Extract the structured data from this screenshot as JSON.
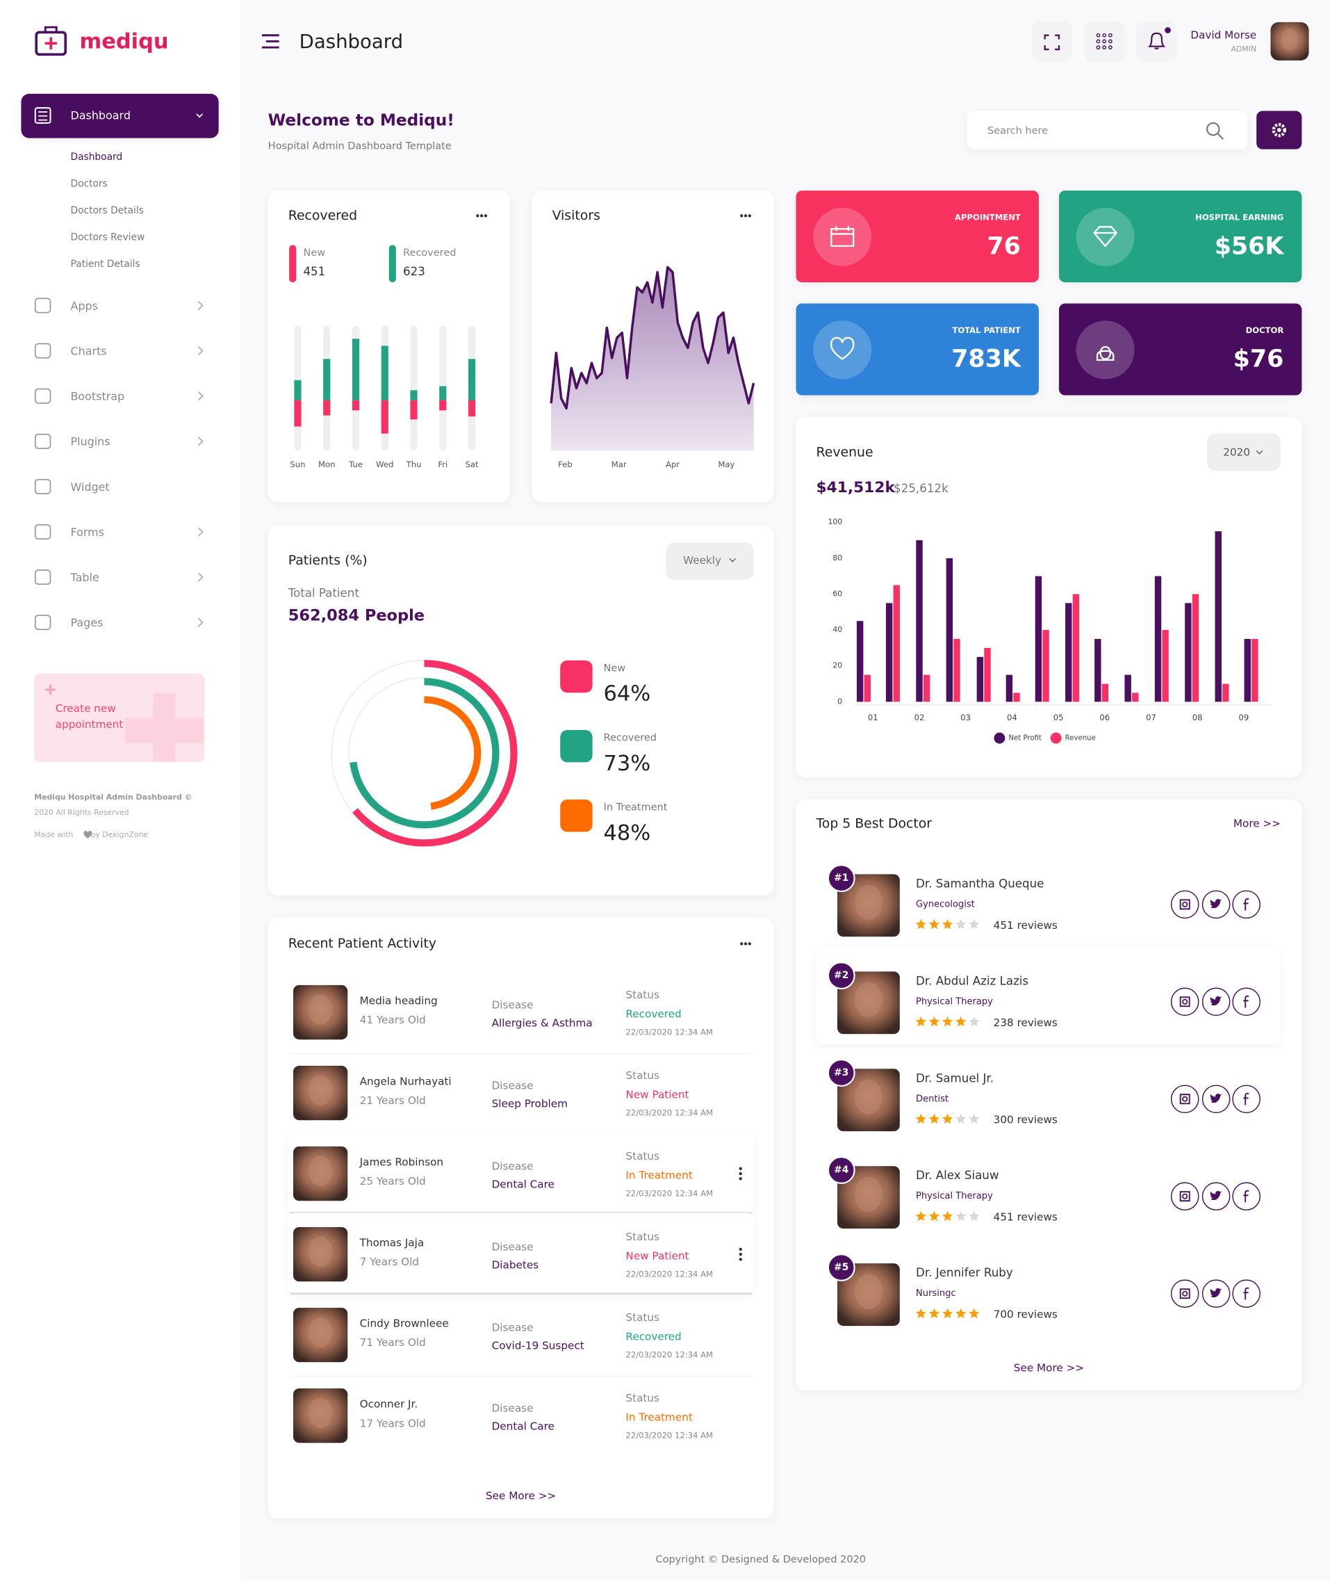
{
  "sidebar": {
    "brand": "mediqu",
    "menu": [
      {
        "label": "Dashboard",
        "expandable": true,
        "submenu": [
          "Dashboard",
          "Doctors",
          "Doctors Details",
          "Doctors Review",
          "Patient Details"
        ]
      },
      {
        "label": "Apps",
        "expandable": true
      },
      {
        "label": "Charts",
        "expandable": true
      },
      {
        "label": "Bootstrap",
        "expandable": true
      },
      {
        "label": "Plugins",
        "expandable": true
      },
      {
        "label": "Widget",
        "expandable": false
      },
      {
        "label": "Forms",
        "expandable": true
      },
      {
        "label": "Table",
        "expandable": true
      },
      {
        "label": "Pages",
        "expandable": true
      }
    ],
    "promo": "Create new appointment",
    "footer": {
      "line1": "Mediqu Hospital Admin Dashboard ©",
      "line2": "2020 All Rights Reserved",
      "made": "Made with",
      "by": "by DexignZone"
    }
  },
  "header": {
    "title": "Dashboard",
    "user": {
      "name": "David Morse",
      "role": "ADMIN"
    }
  },
  "welcome": {
    "title": "Welcome to Mediqu!",
    "subtitle": "Hospital Admin Dashboard Template",
    "search_placeholder": "Search here"
  },
  "stats": [
    {
      "label": "APPOINTMENT",
      "value": "76",
      "color": "#f7325e"
    },
    {
      "label": "HOSPITAL EARNING",
      "value": "$56K",
      "color": "#22a484"
    },
    {
      "label": "TOTAL PATIENT",
      "value": "783K",
      "color": "#2e82d8"
    },
    {
      "label": "DOCTOR",
      "value": "$76",
      "color": "#4a0f5e"
    }
  ],
  "chart_data": [
    {
      "type": "diverging_bar",
      "title": "Recovered",
      "categories": [
        "Sun",
        "Mon",
        "Tue",
        "Wed",
        "Thu",
        "Fri",
        "Sat"
      ],
      "series": [
        {
          "name": "New",
          "total": 451,
          "color": "#f73164",
          "values": [
            26,
            15,
            10,
            33,
            19,
            10,
            16
          ]
        },
        {
          "name": "Recovered",
          "total": 623,
          "color": "#22a484",
          "values": [
            20,
            41,
            61,
            54,
            10,
            14,
            41
          ]
        }
      ]
    },
    {
      "type": "area",
      "title": "Visitors",
      "color": "#4a0f5e",
      "x_labels": [
        "Feb",
        "Mar",
        "Apr",
        "May"
      ],
      "values": [
        47,
        97,
        52,
        42,
        82,
        62,
        77,
        67,
        87,
        72,
        77,
        122,
        92,
        112,
        117,
        72,
        122,
        162,
        157,
        167,
        147,
        177,
        142,
        182,
        177,
        127,
        112,
        102,
        127,
        137,
        102,
        87,
        107,
        132,
        137,
        97,
        112,
        87,
        67,
        47,
        67
      ]
    },
    {
      "type": "grouped_bar",
      "title": "Revenue",
      "period": "2020",
      "summary": {
        "primary": "$41,512k",
        "secondary": "$25,612k"
      },
      "x": [
        0.8,
        1.43,
        2.08,
        2.73,
        3.39,
        4.02,
        4.65,
        5.3,
        5.93,
        6.58,
        7.23,
        7.88,
        8.53,
        9.16
      ],
      "xlim": [
        0.6,
        9.6
      ],
      "xticks": [
        {
          "value": 1,
          "label": "01"
        },
        {
          "value": 2,
          "label": "02"
        },
        {
          "value": 3,
          "label": "03"
        },
        {
          "value": 4,
          "label": "04"
        },
        {
          "value": 5,
          "label": "05"
        },
        {
          "value": 6,
          "label": "06"
        },
        {
          "value": 7,
          "label": "07"
        },
        {
          "value": 8,
          "label": "08"
        },
        {
          "value": 9,
          "label": "09"
        }
      ],
      "ylim": [
        0,
        100
      ],
      "yticks": [
        0,
        20,
        40,
        60,
        80,
        100
      ],
      "grid": false,
      "legend": "bottom",
      "series": [
        {
          "name": "Net Profit",
          "color": "#4a0f5e",
          "values": [
            45,
            55,
            90,
            80,
            25,
            15,
            70,
            55,
            35,
            15,
            70,
            55,
            95,
            35
          ]
        },
        {
          "name": "Revenue",
          "color": "#f73164",
          "values": [
            15,
            65,
            15,
            35,
            30,
            5,
            40,
            60,
            10,
            5,
            40,
            60,
            10,
            35
          ]
        }
      ]
    },
    {
      "type": "radial",
      "title": "Patients (%)",
      "period": "Weekly",
      "total_label": "Total Patient",
      "total": "562,084 People",
      "categories": [
        "New",
        "Recovered",
        "In Treatment"
      ],
      "values": [
        64,
        73,
        48
      ],
      "value_labels": [
        "64%",
        "73%",
        "48%"
      ],
      "colors": [
        "#f73164",
        "#22a484",
        "#fe6c00"
      ]
    }
  ],
  "activity": {
    "title": "Recent Patient Activity",
    "disease_label": "Disease",
    "status_label": "Status",
    "more": "See More >>",
    "rows": [
      {
        "name": "Media heading",
        "age": "41 Years Old",
        "disease": "Allergies & Asthma",
        "status": "Recovered",
        "status_color": "#22a484",
        "date": "22/03/2020 12:34 AM"
      },
      {
        "name": "Angela Nurhayati",
        "age": "21 Years Old",
        "disease": "Sleep Problem",
        "status": "New Patient",
        "status_color": "#f73164",
        "date": "22/03/2020 12:34 AM"
      },
      {
        "name": "James Robinson",
        "age": "25 Years Old",
        "disease": "Dental Care",
        "status": "In Treatment",
        "status_color": "#fe6c00",
        "date": "22/03/2020 12:34 AM"
      },
      {
        "name": "Thomas Jaja",
        "age": "7 Years Old",
        "disease": "Diabetes",
        "status": "New Patient",
        "status_color": "#f73164",
        "date": "22/03/2020 12:34 AM"
      },
      {
        "name": "Cindy Brownleee",
        "age": "71 Years Old",
        "disease": "Covid-19 Suspect",
        "status": "Recovered",
        "status_color": "#22a484",
        "date": "22/03/2020 12:34 AM"
      },
      {
        "name": "Oconner Jr.",
        "age": "17 Years Old",
        "disease": "Dental Care",
        "status": "In Treatment",
        "status_color": "#fe6c00",
        "date": "22/03/2020 12:34 AM"
      }
    ]
  },
  "doctors": {
    "title": "Top 5 Best Doctor",
    "more_top": "More >>",
    "more": "See More >>",
    "items": [
      {
        "rank": "#1",
        "name": "Dr. Samantha Queque",
        "specialty": "Gynecologist",
        "rating": 3,
        "reviews": "451 reviews"
      },
      {
        "rank": "#2",
        "name": "Dr. Abdul Aziz Lazis",
        "specialty": "Physical Therapy",
        "rating": 4,
        "reviews": "238 reviews"
      },
      {
        "rank": "#3",
        "name": "Dr. Samuel Jr.",
        "specialty": "Dentist",
        "rating": 3,
        "reviews": "300 reviews"
      },
      {
        "rank": "#4",
        "name": "Dr. Alex Siauw",
        "specialty": "Physical Therapy",
        "rating": 3,
        "reviews": "451 reviews"
      },
      {
        "rank": "#5",
        "name": "Dr. Jennifer Ruby",
        "specialty": "Nursingc",
        "rating": 5,
        "reviews": "700 reviews"
      }
    ]
  },
  "footer": "Copyright © Designed & Developed 2020"
}
